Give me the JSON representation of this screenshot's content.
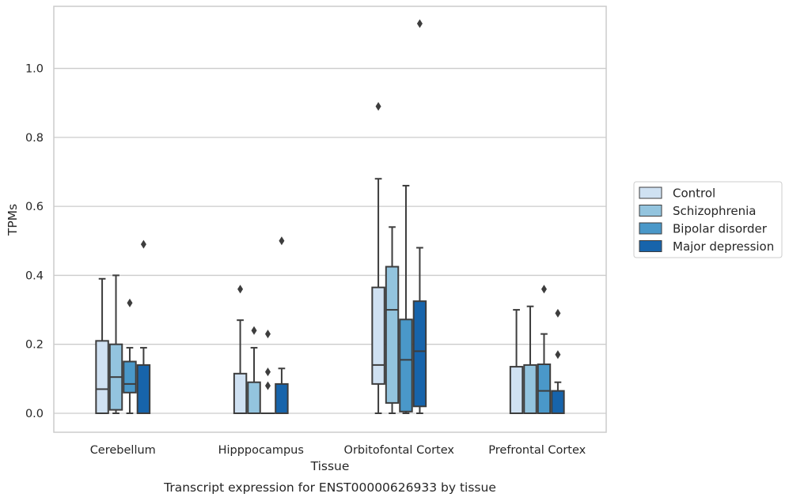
{
  "caption": "Transcript expression for ENST00000626933 by tissue",
  "chart_data": {
    "type": "boxplot",
    "xlabel": "Tissue",
    "ylabel": "TPMs",
    "categories": [
      "Cerebellum",
      "Hipppocampus",
      "Orbitofontal Cortex",
      "Prefrontal Cortex"
    ],
    "ylim": [
      -0.055,
      1.18
    ],
    "yticks": [
      0.0,
      0.2,
      0.4,
      0.6,
      0.8,
      1.0
    ],
    "ytick_labels": [
      "0.0",
      "0.2",
      "0.4",
      "0.6",
      "0.8",
      "1.0"
    ],
    "grid": true,
    "legend_position": "right",
    "series": [
      {
        "name": "Control",
        "color": "#cfe1f2",
        "boxes": [
          {
            "whisker_low": 0.0,
            "q1": 0.0,
            "median": 0.07,
            "q3": 0.21,
            "whisker_high": 0.39,
            "outliers": []
          },
          {
            "whisker_low": 0.0,
            "q1": 0.0,
            "median": 0.0,
            "q3": 0.115,
            "whisker_high": 0.27,
            "outliers": [
              0.36
            ]
          },
          {
            "whisker_low": 0.0,
            "q1": 0.085,
            "median": 0.14,
            "q3": 0.365,
            "whisker_high": 0.68,
            "outliers": [
              0.89
            ]
          },
          {
            "whisker_low": 0.0,
            "q1": 0.0,
            "median": 0.0,
            "q3": 0.135,
            "whisker_high": 0.3,
            "outliers": []
          }
        ]
      },
      {
        "name": "Schizophrenia",
        "color": "#93c4de",
        "boxes": [
          {
            "whisker_low": 0.0,
            "q1": 0.01,
            "median": 0.105,
            "q3": 0.2,
            "whisker_high": 0.4,
            "outliers": []
          },
          {
            "whisker_low": 0.0,
            "q1": 0.0,
            "median": 0.0,
            "q3": 0.09,
            "whisker_high": 0.19,
            "outliers": [
              0.24
            ]
          },
          {
            "whisker_low": 0.0,
            "q1": 0.03,
            "median": 0.3,
            "q3": 0.425,
            "whisker_high": 0.54,
            "outliers": []
          },
          {
            "whisker_low": 0.0,
            "q1": 0.0,
            "median": 0.0,
            "q3": 0.14,
            "whisker_high": 0.31,
            "outliers": []
          }
        ]
      },
      {
        "name": "Bipolar disorder",
        "color": "#4a98c9",
        "boxes": [
          {
            "whisker_low": 0.0,
            "q1": 0.06,
            "median": 0.085,
            "q3": 0.15,
            "whisker_high": 0.19,
            "outliers": [
              0.32
            ]
          },
          {
            "whisker_low": 0.0,
            "q1": 0.0,
            "median": 0.0,
            "q3": 0.0,
            "whisker_high": 0.0,
            "outliers": [
              0.08,
              0.12,
              0.23
            ]
          },
          {
            "whisker_low": 0.0,
            "q1": 0.005,
            "median": 0.155,
            "q3": 0.272,
            "whisker_high": 0.66,
            "outliers": []
          },
          {
            "whisker_low": 0.0,
            "q1": 0.0,
            "median": 0.065,
            "q3": 0.142,
            "whisker_high": 0.23,
            "outliers": [
              0.36
            ]
          }
        ]
      },
      {
        "name": "Major depression",
        "color": "#1764ab",
        "boxes": [
          {
            "whisker_low": 0.0,
            "q1": 0.0,
            "median": 0.0,
            "q3": 0.14,
            "whisker_high": 0.19,
            "outliers": [
              0.49
            ]
          },
          {
            "whisker_low": 0.0,
            "q1": 0.0,
            "median": 0.0,
            "q3": 0.085,
            "whisker_high": 0.13,
            "outliers": [
              0.5
            ]
          },
          {
            "whisker_low": 0.0,
            "q1": 0.02,
            "median": 0.18,
            "q3": 0.325,
            "whisker_high": 0.48,
            "outliers": [
              1.13
            ]
          },
          {
            "whisker_low": 0.0,
            "q1": 0.0,
            "median": 0.0,
            "q3": 0.065,
            "whisker_high": 0.09,
            "outliers": [
              0.17,
              0.29
            ]
          }
        ]
      }
    ]
  }
}
